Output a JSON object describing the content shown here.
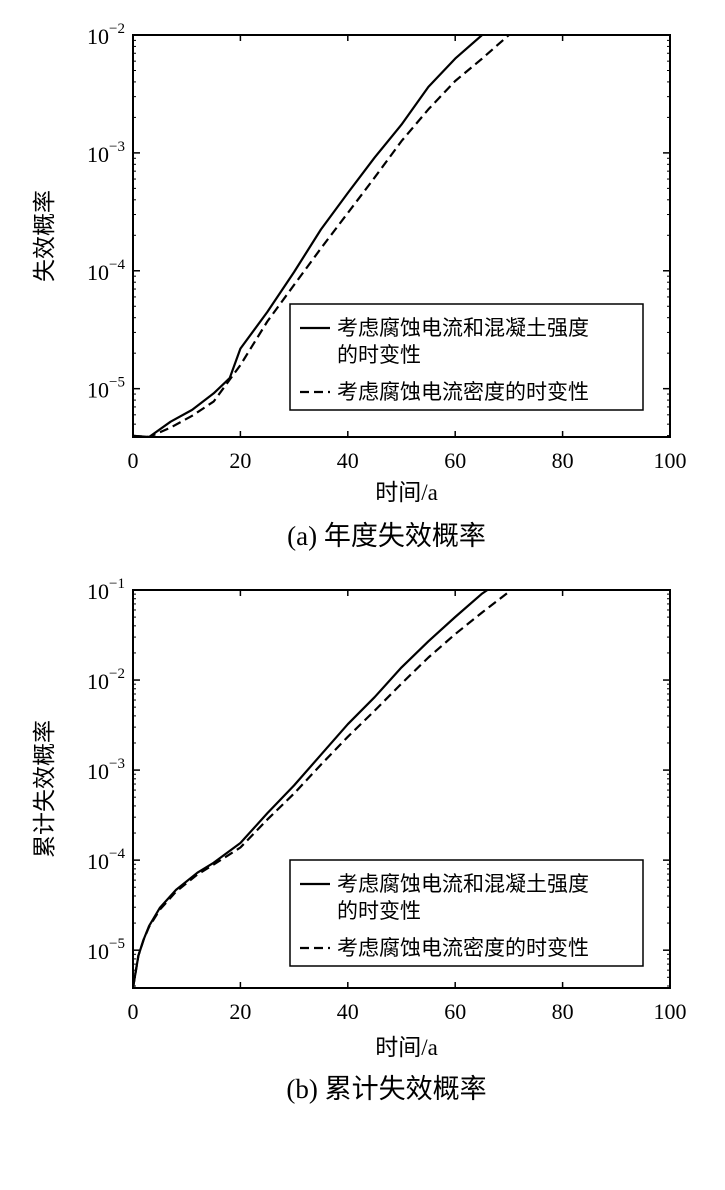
{
  "chart_data": [
    {
      "type": "line",
      "caption": "(a) 年度失效概率",
      "xlabel": "时间/a",
      "ylabel": "失效概率",
      "yscale": "log",
      "xlim": [
        0,
        100
      ],
      "ylim_log10": [
        -5.41,
        -2
      ],
      "xticks": [
        "0",
        "20",
        "40",
        "60",
        "80",
        "100"
      ],
      "yticks": [
        {
          "base": "10",
          "exp": "−5",
          "log10": -5
        },
        {
          "base": "10",
          "exp": "−4",
          "log10": -4
        },
        {
          "base": "10",
          "exp": "−3",
          "log10": -3
        },
        {
          "base": "10",
          "exp": "−2",
          "log10": -2
        }
      ],
      "legend_position": "bottom-right",
      "series": [
        {
          "name": "考虑腐蚀电流和混凝土强度",
          "name_line2": "的时变性",
          "style": "solid",
          "x": [
            0,
            3,
            7,
            11,
            15,
            18,
            20,
            25,
            30,
            35,
            40,
            45,
            50,
            55,
            60,
            65
          ],
          "y_log10": [
            -5.4,
            -5.41,
            -5.28,
            -5.18,
            -5.04,
            -4.91,
            -4.66,
            -4.35,
            -4.01,
            -3.65,
            -3.34,
            -3.04,
            -2.76,
            -2.44,
            -2.2,
            -2.0
          ]
        },
        {
          "name": "考虑腐蚀电流密度的时变性",
          "style": "dashed",
          "x": [
            0,
            3,
            7,
            11,
            15,
            20,
            25,
            30,
            35,
            40,
            45,
            50,
            55,
            60,
            65,
            70
          ],
          "y_log10": [
            -5.4,
            -5.41,
            -5.33,
            -5.23,
            -5.11,
            -4.8,
            -4.43,
            -4.12,
            -3.81,
            -3.51,
            -3.21,
            -2.9,
            -2.63,
            -2.39,
            -2.2,
            -2.0
          ]
        }
      ]
    },
    {
      "type": "line",
      "caption": "(b) 累计失效概率",
      "xlabel": "时间/a",
      "ylabel": "累计失效概率",
      "yscale": "log",
      "xlim": [
        0,
        100
      ],
      "ylim_log10": [
        -5.42,
        -1
      ],
      "xticks": [
        "0",
        "20",
        "40",
        "60",
        "80",
        "100"
      ],
      "yticks": [
        {
          "base": "10",
          "exp": "−5",
          "log10": -5
        },
        {
          "base": "10",
          "exp": "−4",
          "log10": -4
        },
        {
          "base": "10",
          "exp": "−3",
          "log10": -3
        },
        {
          "base": "10",
          "exp": "−2",
          "log10": -2
        },
        {
          "base": "10",
          "exp": "−1",
          "log10": -1
        }
      ],
      "legend_position": "bottom-right",
      "series": [
        {
          "name": "考虑腐蚀电流和混凝土强度",
          "name_line2": "的时变性",
          "style": "solid",
          "x": [
            0,
            1,
            2,
            3,
            5,
            8,
            12,
            15,
            20,
            25,
            30,
            35,
            40,
            45,
            50,
            55,
            60,
            65,
            66
          ],
          "y_log10": [
            -5.42,
            -5.06,
            -4.88,
            -4.73,
            -4.53,
            -4.33,
            -4.14,
            -4.03,
            -3.81,
            -3.48,
            -3.17,
            -2.83,
            -2.49,
            -2.19,
            -1.86,
            -1.57,
            -1.3,
            -1.04,
            -1.0
          ]
        },
        {
          "name": "考虑腐蚀电流密度的时变性",
          "style": "dashed",
          "x": [
            0,
            1,
            2,
            3,
            5,
            8,
            12,
            15,
            20,
            25,
            30,
            35,
            40,
            45,
            50,
            55,
            60,
            65,
            70
          ],
          "y_log10": [
            -5.42,
            -5.06,
            -4.88,
            -4.74,
            -4.55,
            -4.35,
            -4.16,
            -4.05,
            -3.86,
            -3.55,
            -3.26,
            -2.94,
            -2.63,
            -2.34,
            -2.04,
            -1.75,
            -1.49,
            -1.25,
            -1.02
          ]
        }
      ]
    }
  ]
}
